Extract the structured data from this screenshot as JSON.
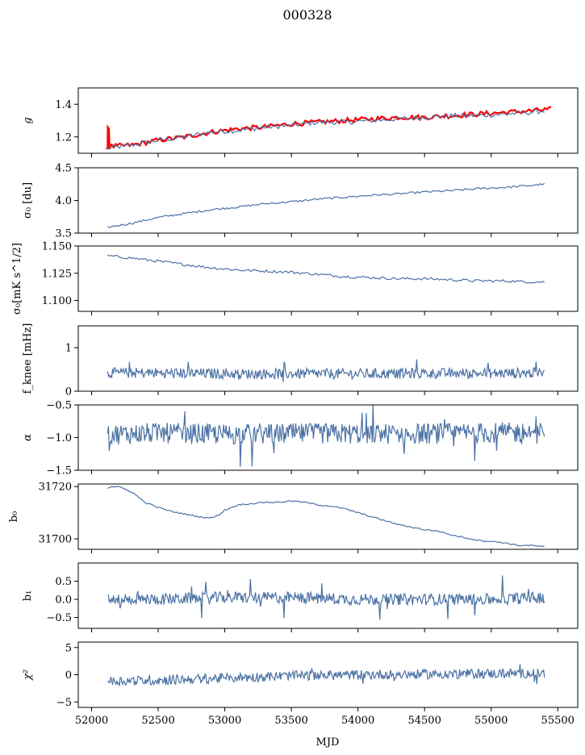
{
  "figure": {
    "title": "000328",
    "xlabel": "MJD"
  },
  "colors": {
    "series": "#4c72a4",
    "fit": "#ff0000",
    "axis": "#000000"
  },
  "chart_data": [
    {
      "type": "line",
      "ylabel": "g",
      "xlim": [
        51900,
        55650
      ],
      "ylim": [
        1.1,
        1.5
      ],
      "yticks": [
        1.2,
        1.4
      ],
      "ytick_labels": [
        "1.2",
        "1.4"
      ],
      "series": [
        {
          "x": [
            52120,
            52300,
            52500,
            52700,
            52900,
            53100,
            53300,
            53500,
            53700,
            53900,
            54100,
            54300,
            54500,
            54700,
            54900,
            55100,
            55300,
            55400
          ],
          "values": [
            1.13,
            1.15,
            1.18,
            1.2,
            1.23,
            1.24,
            1.26,
            1.27,
            1.29,
            1.29,
            1.3,
            1.31,
            1.32,
            1.33,
            1.33,
            1.34,
            1.35,
            1.36
          ]
        },
        {
          "x": [
            52120,
            52125,
            52130,
            52300,
            52500,
            52700,
            52900,
            53100,
            53300,
            53500,
            53700,
            53900,
            54100,
            54300,
            54500,
            54700,
            54900,
            55100,
            55300,
            55450
          ],
          "values": [
            1.13,
            1.25,
            1.14,
            1.15,
            1.18,
            1.2,
            1.23,
            1.25,
            1.26,
            1.28,
            1.29,
            1.3,
            1.31,
            1.32,
            1.32,
            1.33,
            1.34,
            1.35,
            1.36,
            1.37
          ]
        }
      ]
    },
    {
      "type": "line",
      "ylabel": "σ₀ [du]",
      "xlim": [
        51900,
        55650
      ],
      "ylim": [
        3.5,
        4.5
      ],
      "yticks": [
        3.5,
        4.0,
        4.5
      ],
      "ytick_labels": [
        "3.5",
        "4.0",
        "4.5"
      ],
      "series": [
        {
          "x": [
            52120,
            52300,
            52500,
            52700,
            52900,
            53100,
            53300,
            53500,
            53700,
            53900,
            54100,
            54300,
            54500,
            54700,
            54900,
            55100,
            55300,
            55400
          ],
          "values": [
            3.59,
            3.65,
            3.74,
            3.8,
            3.86,
            3.9,
            3.95,
            3.98,
            4.02,
            4.05,
            4.08,
            4.1,
            4.13,
            4.15,
            4.18,
            4.2,
            4.23,
            4.25
          ]
        }
      ]
    },
    {
      "type": "line",
      "ylabel": "σ₀[mK s^1/2]",
      "xlim": [
        51900,
        55650
      ],
      "ylim": [
        1.09,
        1.15
      ],
      "yticks": [
        1.1,
        1.125,
        1.15
      ],
      "ytick_labels": [
        "1.100",
        "1.125",
        "1.150"
      ],
      "series": [
        {
          "x": [
            52120,
            52300,
            52500,
            52700,
            52900,
            53100,
            53300,
            53500,
            53700,
            53900,
            54100,
            54300,
            54500,
            54700,
            54900,
            55100,
            55300,
            55400
          ],
          "values": [
            1.141,
            1.139,
            1.136,
            1.133,
            1.13,
            1.128,
            1.127,
            1.126,
            1.124,
            1.122,
            1.121,
            1.12,
            1.12,
            1.119,
            1.118,
            1.118,
            1.117,
            1.117
          ]
        }
      ]
    },
    {
      "type": "line",
      "ylabel": "f_knee [mHz]",
      "xlim": [
        51900,
        55650
      ],
      "ylim": [
        0,
        1.5
      ],
      "yticks": [
        0,
        1
      ],
      "ytick_labels": [
        "0",
        "1"
      ],
      "series": [
        {
          "x": [
            52120,
            52500,
            53000,
            53500,
            54000,
            54500,
            55000,
            55400
          ],
          "values": [
            0.42,
            0.42,
            0.4,
            0.4,
            0.4,
            0.41,
            0.41,
            0.42
          ]
        }
      ]
    },
    {
      "type": "line",
      "ylabel": "α",
      "xlim": [
        51900,
        55650
      ],
      "ylim": [
        -1.5,
        -0.5
      ],
      "yticks": [
        -1.5,
        -1.0,
        -0.5
      ],
      "ytick_labels": [
        "−1.5",
        "−1.0",
        "−0.5"
      ],
      "series": [
        {
          "x": [
            52120,
            52500,
            53000,
            53500,
            54000,
            54500,
            55000,
            55400
          ],
          "values": [
            -0.95,
            -0.93,
            -0.95,
            -0.94,
            -0.94,
            -0.94,
            -0.93,
            -0.92
          ]
        }
      ]
    },
    {
      "type": "line",
      "ylabel": "b₀",
      "xlim": [
        51900,
        55650
      ],
      "ylim": [
        31696,
        31721
      ],
      "yticks": [
        31700,
        31720
      ],
      "ytick_labels": [
        "31700",
        "31720"
      ],
      "series": [
        {
          "x": [
            52120,
            52150,
            52200,
            52300,
            52400,
            52500,
            52600,
            52700,
            52800,
            52900,
            52950,
            53000,
            53100,
            53200,
            53300,
            53400,
            53500,
            53600,
            53700,
            53800,
            53900,
            54000,
            54100,
            54200,
            54300,
            54400,
            54500,
            54600,
            54700,
            54800,
            54900,
            55000,
            55100,
            55200,
            55300,
            55400
          ],
          "values": [
            31719.5,
            31720,
            31720,
            31718,
            31714,
            31712,
            31710.5,
            31709.5,
            31708.5,
            31708,
            31709,
            31711,
            31713,
            31713.5,
            31714,
            31714,
            31714.5,
            31714,
            31713,
            31712.5,
            31711.5,
            31710,
            31708.5,
            31707,
            31705.5,
            31704.5,
            31703.5,
            31703,
            31701.5,
            31700.5,
            31699.5,
            31699,
            31698.5,
            31697.5,
            31697.5,
            31697
          ]
        }
      ]
    },
    {
      "type": "line",
      "ylabel": "b₁",
      "xlim": [
        51900,
        55650
      ],
      "ylim": [
        -0.8,
        1.0
      ],
      "yticks": [
        -0.5,
        0.0,
        0.5
      ],
      "ytick_labels": [
        "−0.5",
        "0.0",
        "0.5"
      ],
      "series": [
        {
          "x": [
            52120,
            52500,
            53000,
            53500,
            54000,
            54500,
            55000,
            55400
          ],
          "values": [
            0.0,
            0.0,
            0.05,
            0.05,
            0.0,
            0.0,
            0.0,
            0.05
          ]
        }
      ]
    },
    {
      "type": "line",
      "ylabel": "χ²",
      "xlim": [
        51900,
        55650
      ],
      "ylim": [
        -6,
        6
      ],
      "yticks": [
        -5,
        0,
        5
      ],
      "ytick_labels": [
        "−5",
        "0",
        "5"
      ],
      "series": [
        {
          "x": [
            52120,
            52500,
            53000,
            53500,
            54000,
            54500,
            55000,
            55400
          ],
          "values": [
            -1.2,
            -1.0,
            -0.6,
            -0.2,
            0.0,
            0.1,
            0.2,
            0.3
          ]
        }
      ]
    }
  ],
  "xaxis": {
    "ticks": [
      52000,
      52500,
      53000,
      53500,
      54000,
      54500,
      55000,
      55500
    ],
    "tick_labels": [
      "52000",
      "52500",
      "53000",
      "53500",
      "54000",
      "54500",
      "55000",
      "55500"
    ]
  }
}
